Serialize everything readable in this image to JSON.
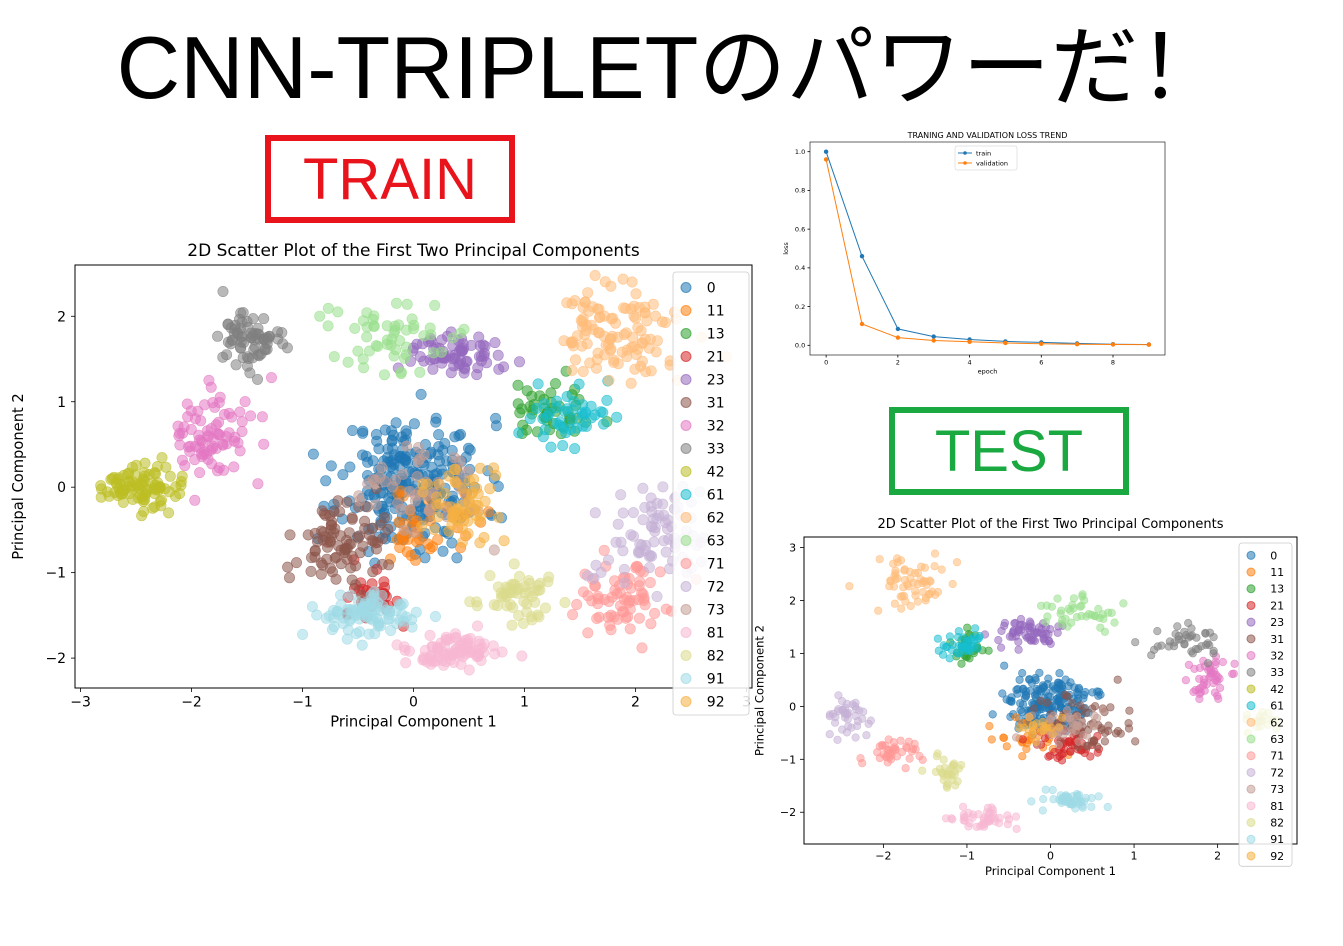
{
  "title": "CNN-TRIPLETのパワーだ！",
  "train_label": "TRAIN",
  "test_label": "TEST",
  "colors": {
    "train_border": "#e8131b",
    "test_border": "#1aa840"
  },
  "chart_data": [
    {
      "id": "train-scatter",
      "type": "scatter",
      "title": "2D Scatter Plot of the First Two Principal Components",
      "xlabel": "Principal Component 1",
      "ylabel": "Principal Component 2",
      "xlim": [
        -3.05,
        3.05
      ],
      "ylim": [
        -2.35,
        2.6
      ],
      "xticks": [
        -3,
        -2,
        -1,
        0,
        1,
        2,
        3
      ],
      "yticks": [
        -2,
        -1,
        0,
        1,
        2
      ],
      "legend_position": "right",
      "series": [
        {
          "name": "0",
          "color": "#1f77b4",
          "cx": 0.0,
          "cy": 0.05,
          "sx": 0.32,
          "sy": 0.38,
          "n": 260
        },
        {
          "name": "11",
          "color": "#ff7f0e",
          "cx": 0.1,
          "cy": -0.45,
          "sx": 0.22,
          "sy": 0.2,
          "n": 40
        },
        {
          "name": "13",
          "color": "#2ca02c",
          "cx": 1.2,
          "cy": 0.85,
          "sx": 0.18,
          "sy": 0.16,
          "n": 45
        },
        {
          "name": "21",
          "color": "#d62728",
          "cx": -0.35,
          "cy": -1.3,
          "sx": 0.12,
          "sy": 0.18,
          "n": 30
        },
        {
          "name": "23",
          "color": "#9467bd",
          "cx": 0.35,
          "cy": 1.55,
          "sx": 0.2,
          "sy": 0.12,
          "n": 70
        },
        {
          "name": "31",
          "color": "#8c564b",
          "cx": -0.65,
          "cy": -0.7,
          "sx": 0.22,
          "sy": 0.28,
          "n": 90
        },
        {
          "name": "32",
          "color": "#e377c2",
          "cx": -1.85,
          "cy": 0.6,
          "sx": 0.2,
          "sy": 0.28,
          "n": 80
        },
        {
          "name": "33",
          "color": "#7f7f7f",
          "cx": -1.45,
          "cy": 1.72,
          "sx": 0.13,
          "sy": 0.18,
          "n": 70
        },
        {
          "name": "42",
          "color": "#bcbd22",
          "cx": -2.45,
          "cy": 0.0,
          "sx": 0.18,
          "sy": 0.13,
          "n": 90
        },
        {
          "name": "61",
          "color": "#17becf",
          "cx": 1.45,
          "cy": 0.8,
          "sx": 0.2,
          "sy": 0.18,
          "n": 45
        },
        {
          "name": "62",
          "color": "#ffbb78",
          "cx": 1.85,
          "cy": 1.8,
          "sx": 0.28,
          "sy": 0.28,
          "n": 110
        },
        {
          "name": "63",
          "color": "#98df8a",
          "cx": -0.2,
          "cy": 1.8,
          "sx": 0.3,
          "sy": 0.2,
          "n": 55
        },
        {
          "name": "71",
          "color": "#ff9896",
          "cx": 1.85,
          "cy": -1.35,
          "sx": 0.22,
          "sy": 0.25,
          "n": 70
        },
        {
          "name": "72",
          "color": "#c5b0d5",
          "cx": 2.2,
          "cy": -0.55,
          "sx": 0.28,
          "sy": 0.3,
          "n": 80
        },
        {
          "name": "73",
          "color": "#c49c94",
          "cx": 0.15,
          "cy": -0.1,
          "sx": 0.28,
          "sy": 0.3,
          "n": 50
        },
        {
          "name": "81",
          "color": "#f7b6d2",
          "cx": 0.35,
          "cy": -1.9,
          "sx": 0.22,
          "sy": 0.1,
          "n": 90
        },
        {
          "name": "82",
          "color": "#dbdb8d",
          "cx": 0.95,
          "cy": -1.25,
          "sx": 0.16,
          "sy": 0.15,
          "n": 55
        },
        {
          "name": "91",
          "color": "#9edae5",
          "cx": -0.4,
          "cy": -1.5,
          "sx": 0.2,
          "sy": 0.13,
          "n": 90
        },
        {
          "name": "92",
          "color": "#f5b041",
          "cx": 0.45,
          "cy": -0.25,
          "sx": 0.2,
          "sy": 0.25,
          "n": 60
        }
      ]
    },
    {
      "id": "loss-trend",
      "type": "line",
      "title": "TRANING AND VALIDATION LOSS TREND",
      "xlabel": "epoch",
      "ylabel": "loss",
      "xlim": [
        -0.45,
        9.45
      ],
      "ylim": [
        -0.05,
        1.05
      ],
      "xticks": [
        0,
        2,
        4,
        6,
        8
      ],
      "yticks": [
        0.0,
        0.2,
        0.4,
        0.6,
        0.8,
        1.0
      ],
      "legend_position": "top-center",
      "x": [
        0,
        1,
        2,
        3,
        4,
        5,
        6,
        7,
        8,
        9
      ],
      "series": [
        {
          "name": "train",
          "color": "#1f77b4",
          "values": [
            1.0,
            0.46,
            0.085,
            0.045,
            0.03,
            0.02,
            0.015,
            0.01,
            0.006,
            0.004
          ]
        },
        {
          "name": "validation",
          "color": "#ff7f0e",
          "values": [
            0.96,
            0.11,
            0.04,
            0.025,
            0.018,
            0.012,
            0.008,
            0.006,
            0.004,
            0.003
          ]
        }
      ]
    },
    {
      "id": "test-scatter",
      "type": "scatter",
      "title": "2D Scatter Plot of the First Two Principal Components",
      "xlabel": "Principal Component 1",
      "ylabel": "Principal Component 2",
      "xlim": [
        -2.95,
        2.95
      ],
      "ylim": [
        -2.6,
        3.2
      ],
      "xticks": [
        -2,
        -1,
        0,
        1,
        2
      ],
      "yticks": [
        -2,
        -1,
        0,
        1,
        2,
        3
      ],
      "legend_position": "right",
      "series": [
        {
          "name": "0",
          "color": "#1f77b4",
          "cx": 0.0,
          "cy": 0.05,
          "sx": 0.25,
          "sy": 0.25,
          "n": 180
        },
        {
          "name": "11",
          "color": "#ff7f0e",
          "cx": -0.3,
          "cy": -0.6,
          "sx": 0.2,
          "sy": 0.15,
          "n": 25
        },
        {
          "name": "13",
          "color": "#2ca02c",
          "cx": -1.0,
          "cy": 1.1,
          "sx": 0.1,
          "sy": 0.15,
          "n": 30
        },
        {
          "name": "21",
          "color": "#d62728",
          "cx": 0.25,
          "cy": -0.75,
          "sx": 0.16,
          "sy": 0.15,
          "n": 50
        },
        {
          "name": "23",
          "color": "#9467bd",
          "cx": -0.3,
          "cy": 1.4,
          "sx": 0.17,
          "sy": 0.12,
          "n": 60
        },
        {
          "name": "31",
          "color": "#8c564b",
          "cx": 0.45,
          "cy": -0.35,
          "sx": 0.3,
          "sy": 0.25,
          "n": 60
        },
        {
          "name": "32",
          "color": "#e377c2",
          "cx": 1.85,
          "cy": 0.55,
          "sx": 0.16,
          "sy": 0.22,
          "n": 45
        },
        {
          "name": "33",
          "color": "#7f7f7f",
          "cx": 1.6,
          "cy": 1.2,
          "sx": 0.18,
          "sy": 0.16,
          "n": 40
        },
        {
          "name": "42",
          "color": "#bcbd22",
          "cx": 2.55,
          "cy": -0.3,
          "sx": 0.1,
          "sy": 0.12,
          "n": 20
        },
        {
          "name": "61",
          "color": "#17becf",
          "cx": -1.1,
          "cy": 1.2,
          "sx": 0.15,
          "sy": 0.16,
          "n": 40
        },
        {
          "name": "62",
          "color": "#ffbb78",
          "cx": -1.6,
          "cy": 2.35,
          "sx": 0.2,
          "sy": 0.25,
          "n": 60
        },
        {
          "name": "63",
          "color": "#98df8a",
          "cx": 0.35,
          "cy": 1.8,
          "sx": 0.22,
          "sy": 0.14,
          "n": 40
        },
        {
          "name": "71",
          "color": "#ff9896",
          "cx": -1.85,
          "cy": -0.85,
          "sx": 0.16,
          "sy": 0.13,
          "n": 40
        },
        {
          "name": "72",
          "color": "#c5b0d5",
          "cx": -2.45,
          "cy": -0.15,
          "sx": 0.13,
          "sy": 0.2,
          "n": 40
        },
        {
          "name": "73",
          "color": "#c49c94",
          "cx": 0.1,
          "cy": -0.35,
          "sx": 0.2,
          "sy": 0.18,
          "n": 40
        },
        {
          "name": "81",
          "color": "#f7b6d2",
          "cx": -0.8,
          "cy": -2.1,
          "sx": 0.18,
          "sy": 0.08,
          "n": 45
        },
        {
          "name": "82",
          "color": "#dbdb8d",
          "cx": -1.25,
          "cy": -1.25,
          "sx": 0.09,
          "sy": 0.15,
          "n": 30
        },
        {
          "name": "91",
          "color": "#9edae5",
          "cx": 0.25,
          "cy": -1.75,
          "sx": 0.14,
          "sy": 0.1,
          "n": 50
        },
        {
          "name": "92",
          "color": "#f5b041",
          "cx": -0.1,
          "cy": -0.4,
          "sx": 0.15,
          "sy": 0.15,
          "n": 20
        }
      ]
    }
  ]
}
